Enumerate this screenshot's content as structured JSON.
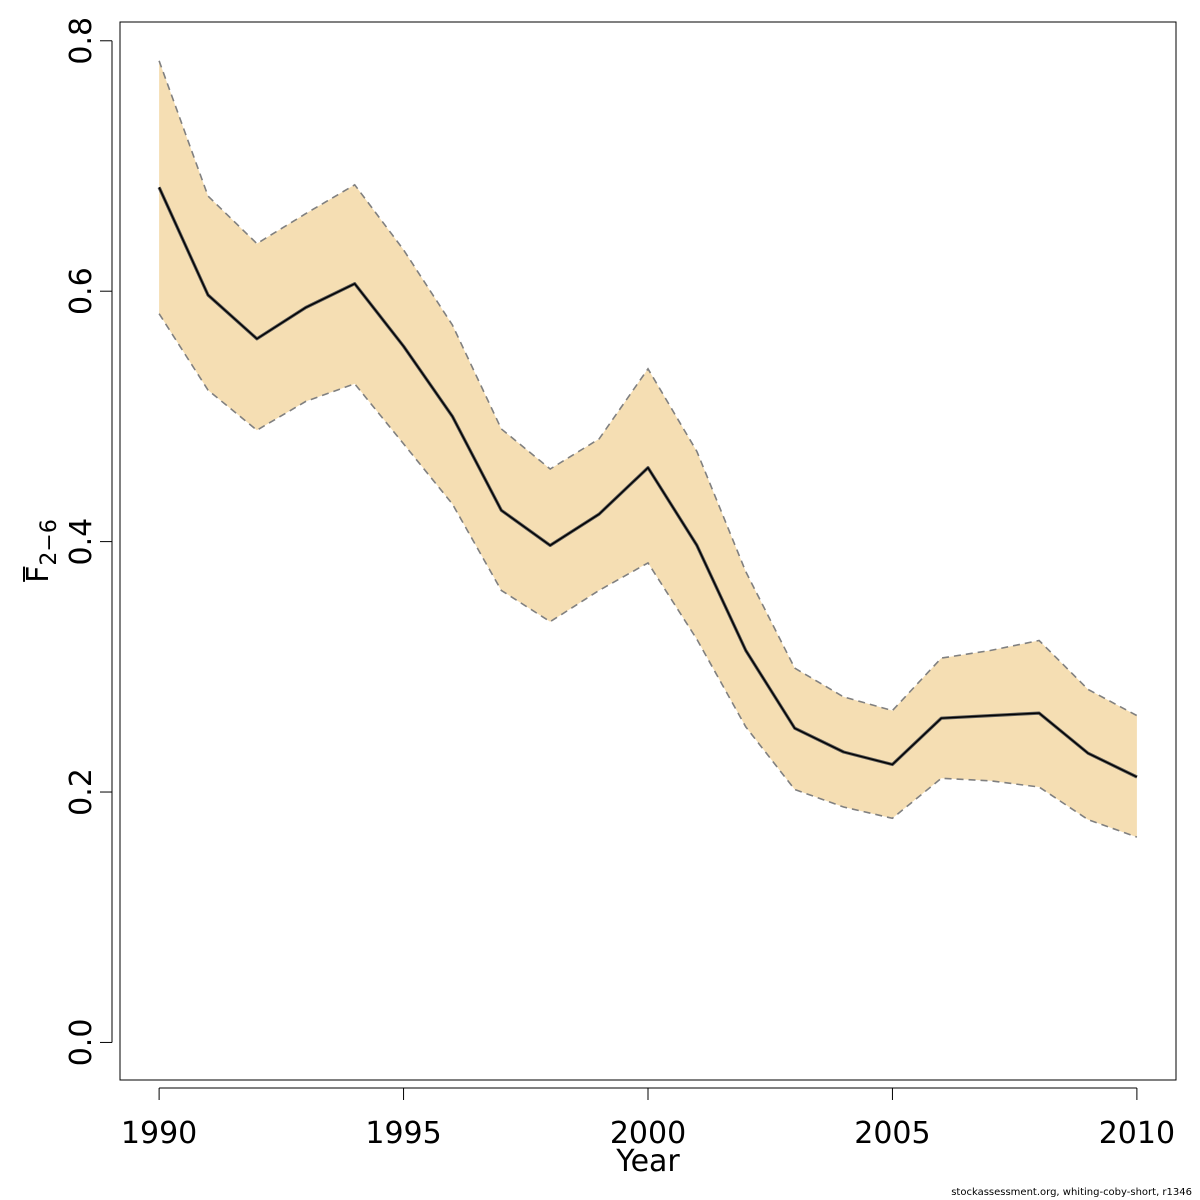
{
  "chart_data": {
    "type": "line",
    "title": "",
    "xlabel": "Year",
    "ylabel": {
      "base": "F",
      "subscript": "2−6",
      "overline": true
    },
    "x": [
      1990,
      1991,
      1992,
      1993,
      1994,
      1995,
      1996,
      1997,
      1998,
      1999,
      2000,
      2001,
      2002,
      2003,
      2004,
      2005,
      2006,
      2007,
      2008,
      2009,
      2010
    ],
    "estimate": [
      0.683,
      0.597,
      0.562,
      0.587,
      0.606,
      0.556,
      0.5,
      0.425,
      0.397,
      0.422,
      0.459,
      0.397,
      0.313,
      0.251,
      0.232,
      0.222,
      0.259,
      0.261,
      0.263,
      0.231,
      0.212
    ],
    "upper": [
      0.784,
      0.676,
      0.638,
      0.662,
      0.685,
      0.633,
      0.573,
      0.49,
      0.458,
      0.482,
      0.538,
      0.472,
      0.376,
      0.299,
      0.276,
      0.265,
      0.307,
      0.313,
      0.321,
      0.282,
      0.261
    ],
    "lower": [
      0.582,
      0.521,
      0.489,
      0.512,
      0.526,
      0.478,
      0.43,
      0.361,
      0.336,
      0.361,
      0.383,
      0.322,
      0.252,
      0.202,
      0.188,
      0.179,
      0.211,
      0.209,
      0.204,
      0.178,
      0.164
    ],
    "xlim": [
      1989.2,
      2010.8
    ],
    "ylim": [
      -0.03,
      0.815
    ],
    "x_ticks": [
      "1990",
      "1995",
      "2000",
      "2005",
      "2010"
    ],
    "y_ticks": [
      "0.0",
      "0.2",
      "0.4",
      "0.6",
      "0.8"
    ],
    "grid": false,
    "colors": {
      "band": "#f5deb3",
      "band_edge": "#808080",
      "line": "#000000"
    }
  },
  "footer": "stockassessment.org, whiting-coby-short, r1346"
}
